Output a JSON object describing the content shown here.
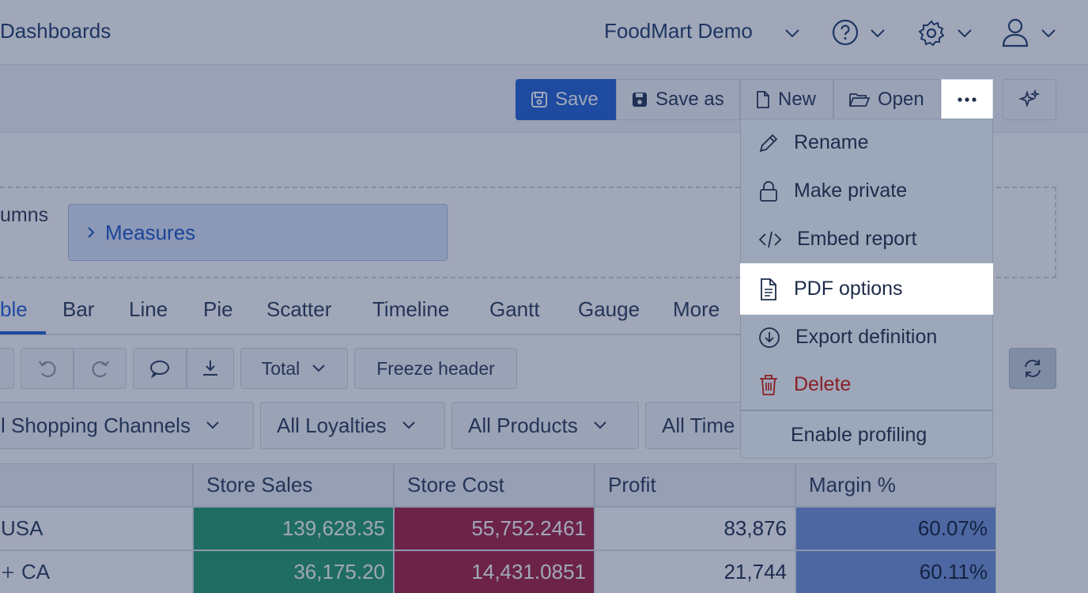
{
  "header": {
    "brand": "Dashboards",
    "project": "FoodMart Demo"
  },
  "toolbar": {
    "save": "Save",
    "save_as": "Save as",
    "new": "New",
    "open": "Open"
  },
  "layout": {
    "columns_label": "umns",
    "measures": "Measures"
  },
  "tabs": [
    "ble",
    "Bar",
    "Line",
    "Pie",
    "Scatter",
    "Timeline",
    "Gantt",
    "Gauge",
    "More"
  ],
  "grid_toolbar": {
    "total": "Total",
    "freeze": "Freeze header"
  },
  "filters": [
    "l Shopping Channels",
    "All Loyalties",
    "All Products",
    "All Time"
  ],
  "table": {
    "headers": [
      "Store Sales",
      "Store Cost",
      "Profit",
      "Margin %"
    ],
    "rows": [
      {
        "label": "USA",
        "store_sales": "139,628.35",
        "store_cost": "55,752.2461",
        "profit": "83,876",
        "margin": "60.07%"
      },
      {
        "label": "CA",
        "store_sales": "36,175.20",
        "store_cost": "14,431.0851",
        "profit": "21,744",
        "margin": "60.11%"
      }
    ]
  },
  "menu": {
    "items": [
      {
        "label": "Rename",
        "icon": "pencil-icon"
      },
      {
        "label": "Make private",
        "icon": "lock-icon"
      },
      {
        "label": "Embed report",
        "icon": "code-icon"
      },
      {
        "label": "PDF options",
        "icon": "document-icon"
      },
      {
        "label": "Export definition",
        "icon": "download-circle-icon"
      },
      {
        "label": "Delete",
        "icon": "trash-icon"
      },
      {
        "label": "Enable profiling",
        "icon": ""
      }
    ]
  },
  "colors": {
    "accent": "#1f5fd6",
    "sales_fill": "#229a6b",
    "cost_fill": "#a81c3f",
    "margin_fill": "#6f92d8",
    "danger": "#b3262e"
  }
}
